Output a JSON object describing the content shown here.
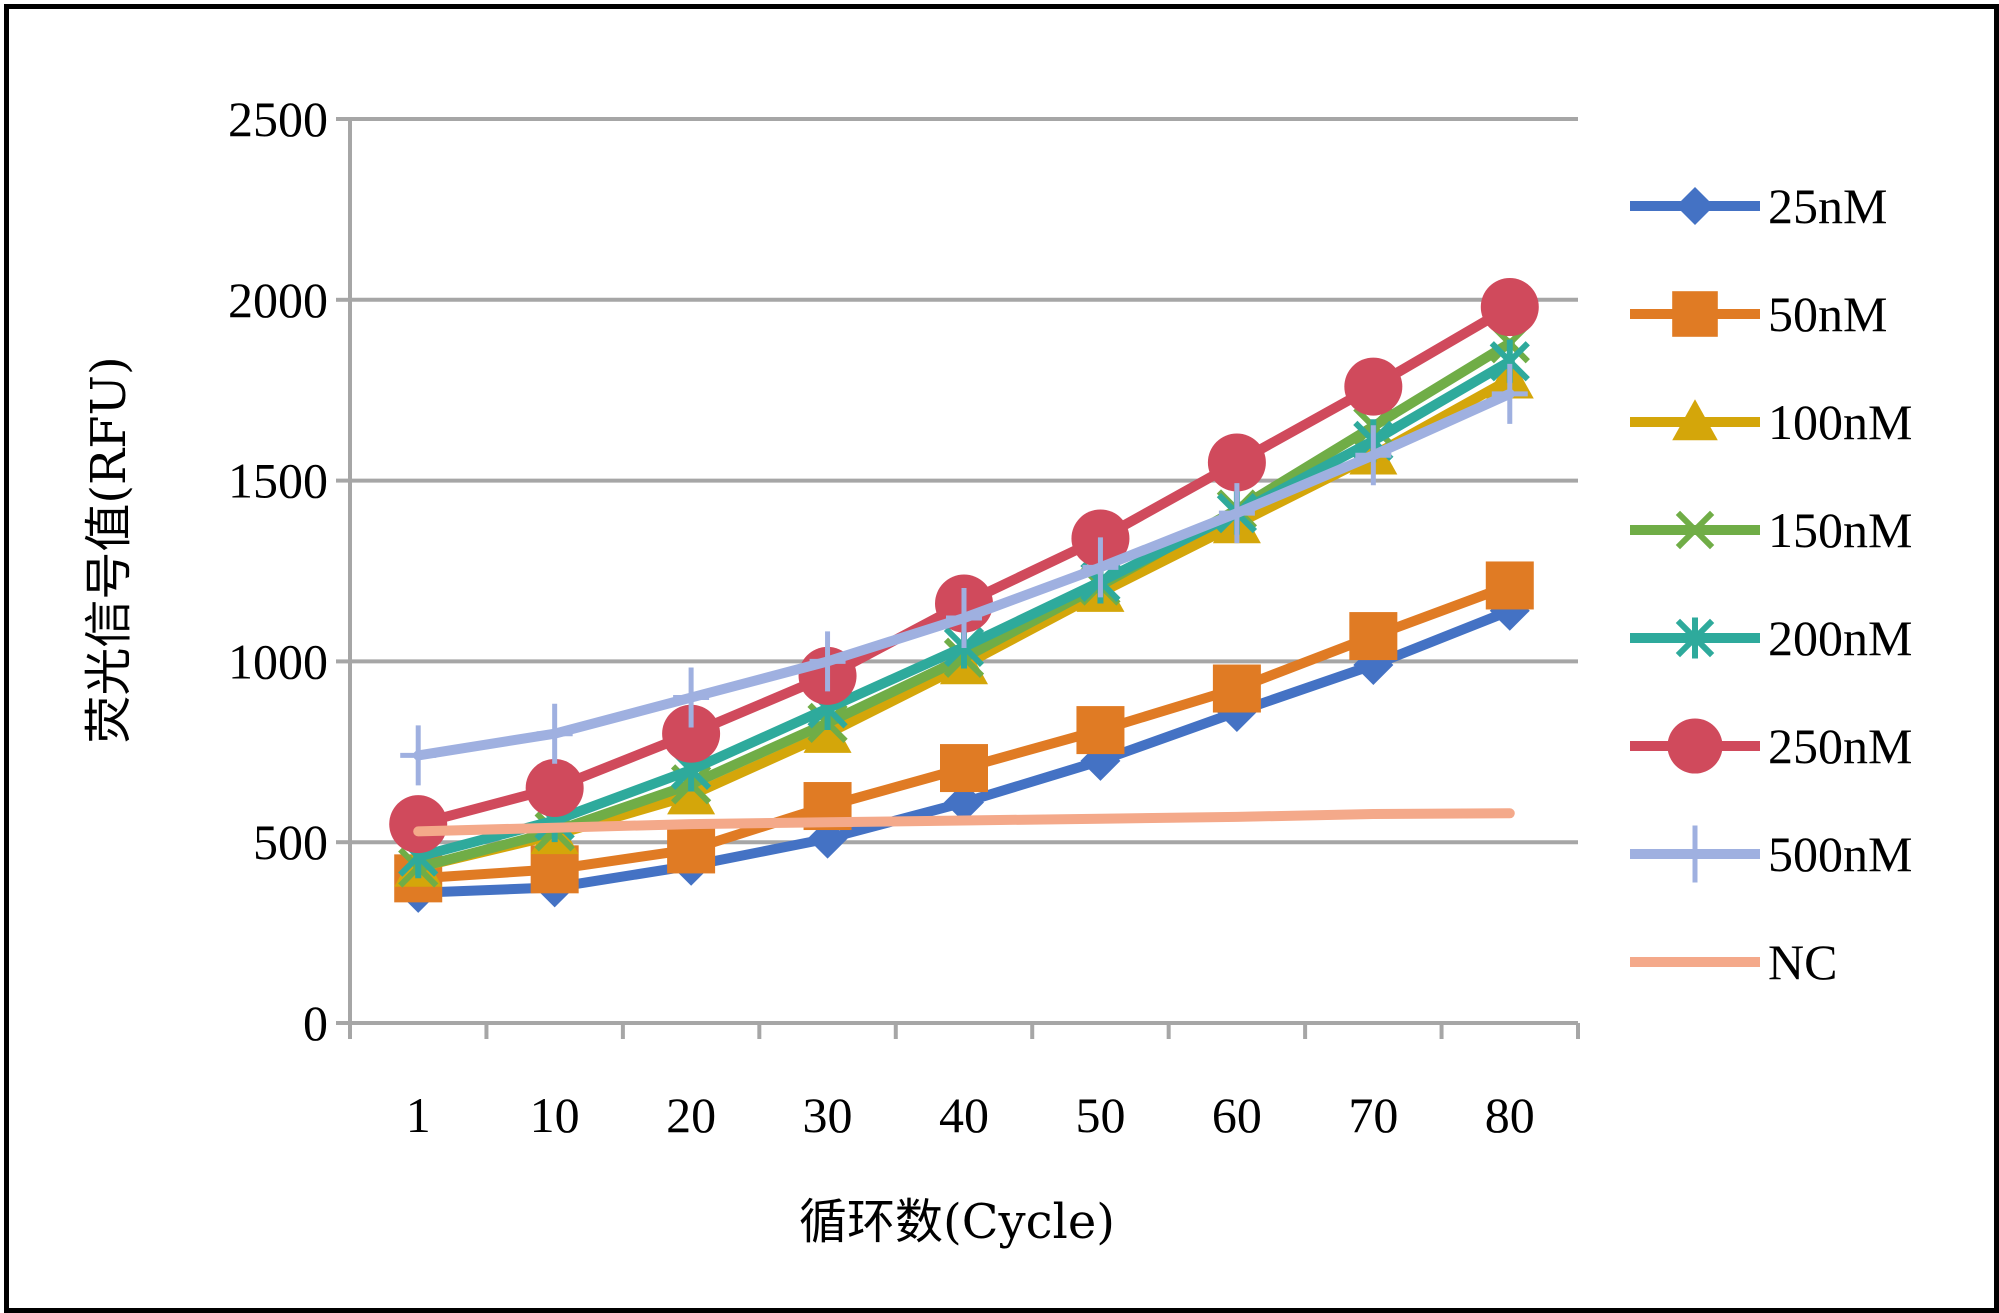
{
  "chart_data": {
    "type": "line",
    "title": "",
    "xlabel": "循环数(Cycle)",
    "ylabel": "荧光信号值(RFU)",
    "categories": [
      "1",
      "10",
      "20",
      "30",
      "40",
      "50",
      "60",
      "70",
      "80"
    ],
    "ylim": [
      0,
      2500
    ],
    "yticks": [
      0,
      500,
      1000,
      1500,
      2000,
      2500
    ],
    "grid": "horizontal",
    "legend": "right",
    "series": [
      {
        "name": "25nM",
        "color": "#4472C4",
        "marker": "diamond",
        "values": [
          360,
          375,
          435,
          510,
          610,
          725,
          860,
          990,
          1140
        ]
      },
      {
        "name": "50nM",
        "color": "#E07B24",
        "marker": "square",
        "values": [
          400,
          425,
          480,
          600,
          705,
          810,
          925,
          1070,
          1210
        ]
      },
      {
        "name": "100nM",
        "color": "#D4A60A",
        "marker": "triangle",
        "values": [
          430,
          520,
          630,
          800,
          990,
          1190,
          1380,
          1570,
          1780
        ]
      },
      {
        "name": "150nM",
        "color": "#70AD47",
        "marker": "x",
        "values": [
          430,
          530,
          660,
          830,
          1010,
          1210,
          1420,
          1650,
          1880
        ]
      },
      {
        "name": "200nM",
        "color": "#2EAA9C",
        "marker": "star",
        "values": [
          460,
          560,
          700,
          870,
          1040,
          1220,
          1410,
          1610,
          1830
        ]
      },
      {
        "name": "250nM",
        "color": "#D04A5C",
        "marker": "circle",
        "values": [
          550,
          650,
          800,
          960,
          1160,
          1340,
          1550,
          1760,
          1980
        ]
      },
      {
        "name": "500nM",
        "color": "#9FB0E0",
        "marker": "plus",
        "values": [
          740,
          800,
          900,
          1000,
          1120,
          1260,
          1410,
          1570,
          1740
        ]
      },
      {
        "name": "NC",
        "color": "#F4A98A",
        "marker": "dash",
        "values": [
          530,
          540,
          550,
          555,
          560,
          565,
          570,
          578,
          580
        ]
      }
    ]
  }
}
